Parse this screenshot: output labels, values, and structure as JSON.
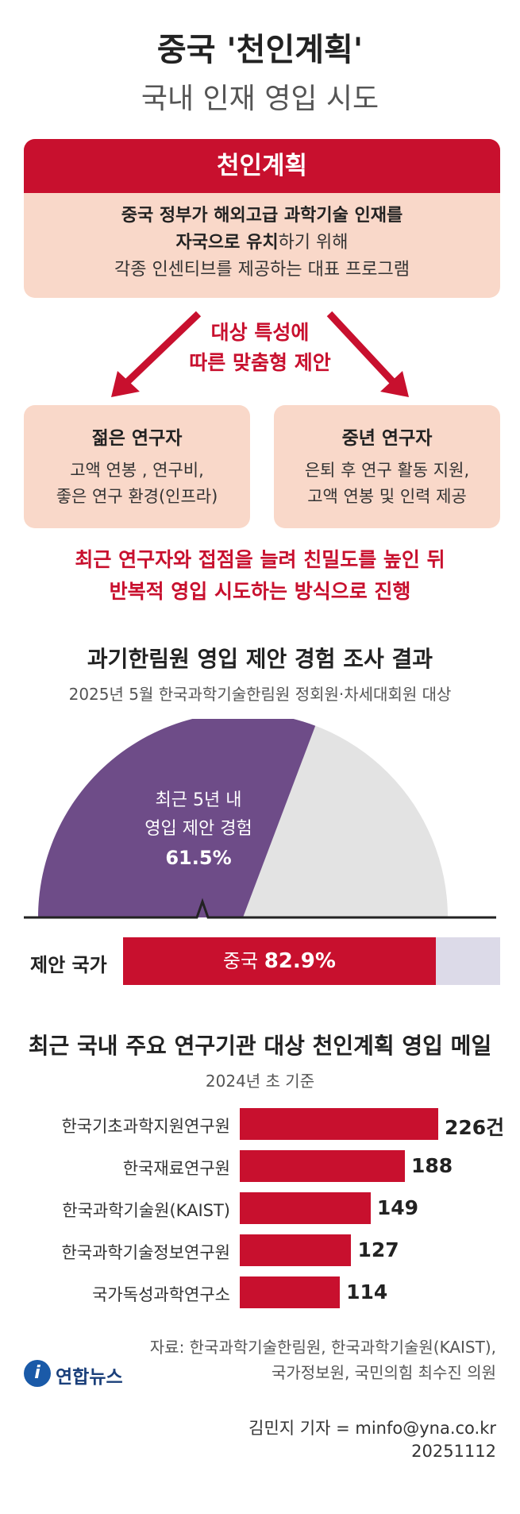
{
  "header": {
    "title": "중국 '천인계획'",
    "subtitle": "국내 인재 영입 시도"
  },
  "definition": {
    "heading": "천인계획",
    "line1": "중국 정부가 해외고급 과학기술 인재를",
    "line2_bold": "자국으로 유치",
    "line2_rest": "하기 위해",
    "line3": "각종 인센티브를 제공하는 대표 프로그램"
  },
  "arrow_label": {
    "line1": "대상 특성에",
    "line2": "따른 맞춤형 제안"
  },
  "targets": [
    {
      "title": "젊은 연구자",
      "desc1": "고액 연봉 , 연구비,",
      "desc2": "좋은 연구 환경(인프라)"
    },
    {
      "title": "중년 연구자",
      "desc1": "은퇴 후 연구 활동 지원,",
      "desc2": "고액 연봉 및 인력 제공"
    }
  ],
  "summary": {
    "line1": "최근 연구자와 접점을 늘려 친밀도를 높인 뒤",
    "line2": "반복적 영입 시도하는 방식으로 진행"
  },
  "survey": {
    "title": "과기한림원 영입 제안 경험 조사 결과",
    "subtitle": "2025년 5월 한국과학기술한림원 정회원·차세대회원 대상",
    "offer_label1": "최근 5년 내",
    "offer_label2": "영입 제안 경험",
    "offer_pct": "61.5%",
    "offer_value": 61.5,
    "country_label": "제안 국가",
    "country_name": "중국",
    "country_pct": "82.9%",
    "country_value": 82.9
  },
  "chart_data": {
    "type": "bar",
    "title": "최근 국내 주요 연구기관 대상 천인계획 영입 메일",
    "subtitle": "2024년 초 기준",
    "categories": [
      "한국기초과학지원연구원",
      "한국재료연구원",
      "한국과학기술원(KAIST)",
      "한국과학기술정보연구원",
      "국가독성과학연구소"
    ],
    "values": [
      226,
      188,
      149,
      127,
      114
    ],
    "value_labels": [
      "226건",
      "188",
      "149",
      "127",
      "114"
    ],
    "xlim": [
      0,
      226
    ]
  },
  "footer": {
    "source1": "자료: 한국과학기술한림원, 한국과학기술원(KAIST),",
    "source2": "국가정보원, 국민의힘 최수진 의원",
    "logo_mark": "i",
    "logo_text": "연합뉴스",
    "credit": "김민지 기자 = minfo@yna.co.kr",
    "date": "20251112"
  },
  "colors": {
    "accent": "#c8102e",
    "peach": "#f9d8c9",
    "purple": "#6e4c88",
    "grey": "#e3e3e3",
    "lavender": "#dcdae8"
  }
}
